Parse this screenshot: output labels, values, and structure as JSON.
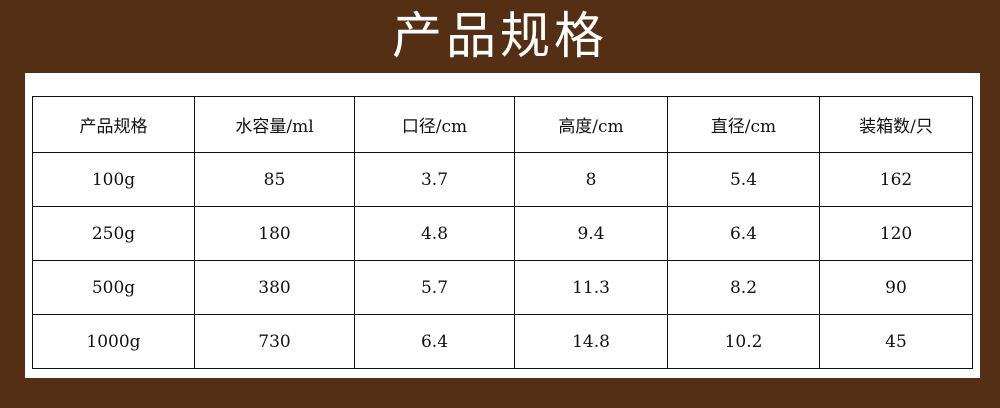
{
  "title": "产品规格",
  "table": {
    "headers": [
      "产品规格",
      "水容量/ml",
      "口径/cm",
      "高度/cm",
      "直径/cm",
      "装箱数/只"
    ],
    "rows": [
      [
        "100g",
        "85",
        "3.7",
        "8",
        "5.4",
        "162"
      ],
      [
        "250g",
        "180",
        "4.8",
        "9.4",
        "6.4",
        "120"
      ],
      [
        "500g",
        "380",
        "5.7",
        "11.3",
        "8.2",
        "90"
      ],
      [
        "1000g",
        "730",
        "6.4",
        "14.8",
        "10.2",
        "45"
      ]
    ]
  },
  "colors": {
    "background": "#552f13",
    "panel": "#ffffff",
    "border": "#111111"
  }
}
